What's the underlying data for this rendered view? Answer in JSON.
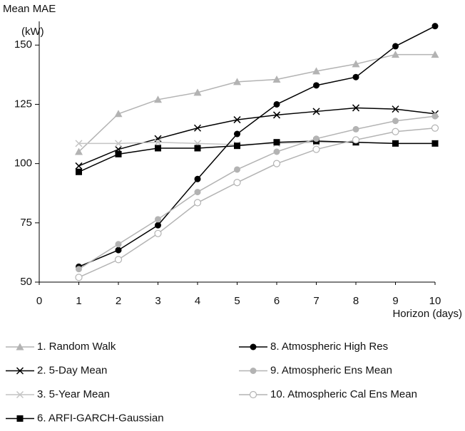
{
  "chart_data": {
    "type": "line",
    "y_label": "Mean MAE",
    "y_unit": "(kW)",
    "x_label": "Horizon (days)",
    "x": [
      1,
      2,
      3,
      4,
      5,
      6,
      7,
      8,
      9,
      10
    ],
    "xlim": [
      0,
      10
    ],
    "xticks": [
      0,
      1,
      2,
      3,
      4,
      5,
      6,
      7,
      8,
      9,
      10
    ],
    "ylim": [
      50,
      160
    ],
    "yticks": [
      50,
      75,
      100,
      125,
      150
    ],
    "series": [
      {
        "name": "1. Random Walk",
        "color": "#b3b3b3",
        "marker": "triangle",
        "values": [
          105,
          121,
          127,
          130,
          134.5,
          135.5,
          139,
          142,
          146,
          146
        ]
      },
      {
        "name": "2. 5-Day Mean",
        "color": "#000000",
        "marker": "x",
        "values": [
          99,
          106,
          110.5,
          115,
          118.5,
          120.5,
          122,
          123.5,
          123,
          121
        ]
      },
      {
        "name": "3. 5-Year Mean",
        "color": "#c4c4c4",
        "marker": "x",
        "values": [
          108.5,
          108.5,
          109,
          108.5,
          108,
          108.5,
          109,
          109,
          108.5,
          108.5
        ]
      },
      {
        "name": "6. ARFI-GARCH-Gaussian",
        "color": "#000000",
        "marker": "square",
        "values": [
          96.5,
          104,
          106.5,
          106.5,
          107.5,
          109,
          109.5,
          109,
          108.5,
          108.5
        ]
      },
      {
        "name": "8. Atmospheric High Res",
        "color": "#000000",
        "marker": "circle",
        "values": [
          56.5,
          63.5,
          74,
          93.5,
          112.5,
          125,
          133,
          136.5,
          149.5,
          158
        ]
      },
      {
        "name": "9. Atmospheric Ens Mean",
        "color": "#b3b3b3",
        "marker": "circle",
        "values": [
          55.5,
          66,
          76.5,
          88,
          97.5,
          105,
          110.5,
          114.5,
          118,
          120
        ]
      },
      {
        "name": "10. Atmospheric Cal Ens Mean",
        "color": "#b3b3b3",
        "marker": "circle-open",
        "values": [
          52,
          59.5,
          70.5,
          83.5,
          92,
          100,
          106,
          110,
          113.5,
          115
        ]
      }
    ]
  }
}
